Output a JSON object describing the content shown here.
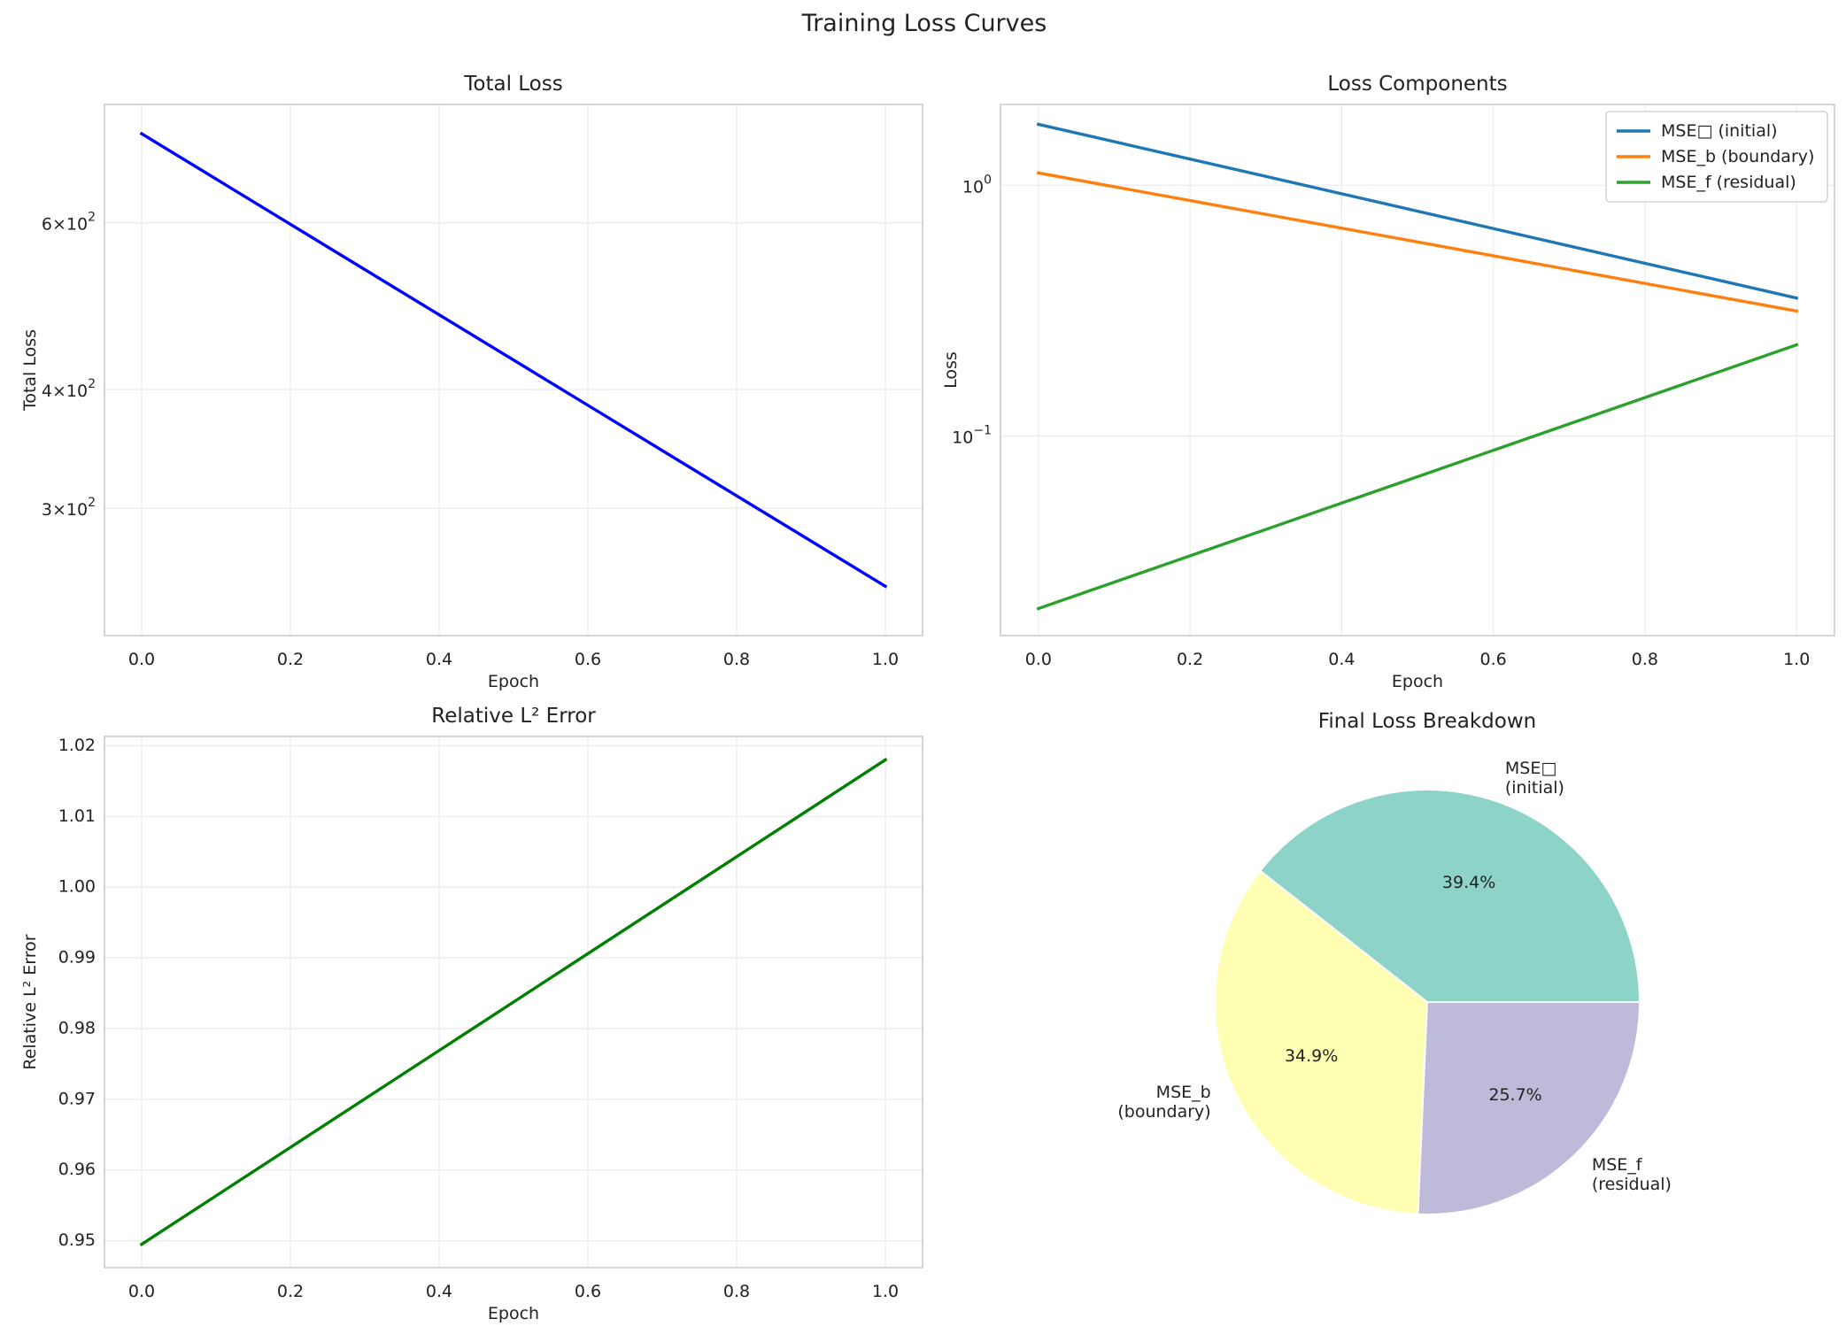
{
  "figure": {
    "title": "Training Loss Curves"
  },
  "chart_data": [
    {
      "id": "total_loss",
      "type": "line",
      "title": "Total Loss",
      "xlabel": "Epoch",
      "ylabel": "Total Loss",
      "yscale": "log",
      "xlim": [
        -0.05,
        1.05
      ],
      "ylim": [
        220,
        800
      ],
      "xticks": [
        0.0,
        0.2,
        0.4,
        0.6,
        0.8,
        1.0
      ],
      "xtick_labels": [
        "0.0",
        "0.2",
        "0.4",
        "0.6",
        "0.8",
        "1.0"
      ],
      "yticks": [
        600,
        400,
        300
      ],
      "ytick_labels": [
        {
          "base": "6",
          "exp": "2"
        },
        {
          "base": "4",
          "exp": "2"
        },
        {
          "base": "3",
          "exp": "2"
        }
      ],
      "grid": true,
      "series": [
        {
          "x": [
            0,
            1
          ],
          "y": [
            745,
            248
          ],
          "color": "#0000ff"
        }
      ]
    },
    {
      "id": "loss_components",
      "type": "line",
      "title": "Loss Components",
      "xlabel": "Epoch",
      "ylabel": "Loss",
      "yscale": "log",
      "xlim": [
        -0.05,
        1.05
      ],
      "ylim": [
        0.016,
        2.1
      ],
      "xticks": [
        0.0,
        0.2,
        0.4,
        0.6,
        0.8,
        1.0
      ],
      "xtick_labels": [
        "0.0",
        "0.2",
        "0.4",
        "0.6",
        "0.8",
        "1.0"
      ],
      "yticks": [
        1.0,
        0.1
      ],
      "ytick_labels": [
        {
          "base": "10",
          "exp": "0"
        },
        {
          "base": "10",
          "exp": "−1"
        }
      ],
      "grid": true,
      "legend_position": "top-right",
      "series": [
        {
          "name": "MSE□ (initial)",
          "x": [
            0,
            1
          ],
          "y": [
            1.75,
            0.355
          ],
          "color": "#1f77b4"
        },
        {
          "name": "MSE_b (boundary)",
          "x": [
            0,
            1
          ],
          "y": [
            1.12,
            0.315
          ],
          "color": "#ff7f0e"
        },
        {
          "name": "MSE_f (residual)",
          "x": [
            0,
            1
          ],
          "y": [
            0.0205,
            0.231
          ],
          "color": "#2ca02c"
        }
      ]
    },
    {
      "id": "rel_l2_error",
      "type": "line",
      "title": "Relative L² Error",
      "xlabel": "Epoch",
      "ylabel": "Relative L² Error",
      "yscale": "linear",
      "xlim": [
        -0.05,
        1.05
      ],
      "ylim": [
        0.9462,
        1.0213
      ],
      "xticks": [
        0.0,
        0.2,
        0.4,
        0.6,
        0.8,
        1.0
      ],
      "xtick_labels": [
        "0.0",
        "0.2",
        "0.4",
        "0.6",
        "0.8",
        "1.0"
      ],
      "yticks": [
        0.95,
        0.96,
        0.97,
        0.98,
        0.99,
        1.0,
        1.01,
        1.02
      ],
      "ytick_labels": [
        "0.95",
        "0.96",
        "0.97",
        "0.98",
        "0.99",
        "1.00",
        "1.01",
        "1.02"
      ],
      "grid": true,
      "series": [
        {
          "x": [
            0,
            1
          ],
          "y": [
            0.9495,
            1.018
          ],
          "color": "#008000"
        }
      ]
    },
    {
      "id": "final_breakdown",
      "type": "pie",
      "title": "Final Loss Breakdown",
      "slices": [
        {
          "label": [
            "MSE□",
            "(initial)"
          ],
          "value": 39.4,
          "pct_label": "39.4%",
          "color": "#8dd3c7"
        },
        {
          "label": [
            "MSE_b",
            "(boundary)"
          ],
          "value": 34.9,
          "pct_label": "34.9%",
          "color": "#ffffb3"
        },
        {
          "label": [
            "MSE_f",
            "(residual)"
          ],
          "value": 25.7,
          "pct_label": "25.7%",
          "color": "#bebada"
        }
      ]
    }
  ]
}
